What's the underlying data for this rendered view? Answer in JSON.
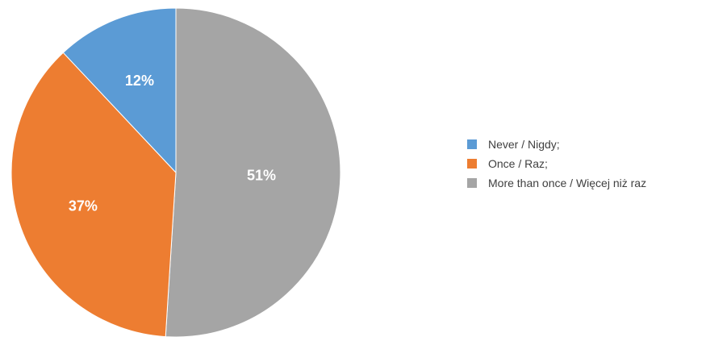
{
  "chart_data": {
    "type": "pie",
    "title": "",
    "legend_position": "right",
    "slices": [
      {
        "label": "Never / Nigdy;",
        "value": 12,
        "display": "12%",
        "color": "#5b9bd5"
      },
      {
        "label": "Once / Raz;",
        "value": 37,
        "display": "37%",
        "color": "#ed7d31"
      },
      {
        "label": "More than once / Więcej niż raz",
        "value": 51,
        "display": "51%",
        "color": "#a5a5a5"
      }
    ]
  }
}
